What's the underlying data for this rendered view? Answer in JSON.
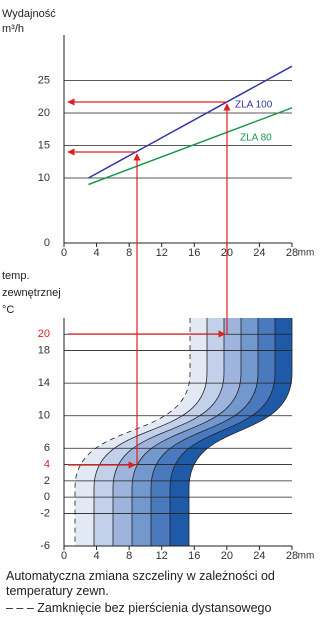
{
  "chart_data": [
    {
      "type": "line",
      "ylabel": [
        "Wydajność",
        "m³/h"
      ],
      "xlabel": "mm",
      "x": [
        3,
        28
      ],
      "xlim": [
        0,
        28
      ],
      "xticks": [
        0,
        4,
        8,
        12,
        16,
        20,
        24,
        28
      ],
      "ylim": [
        0,
        32
      ],
      "yticks": [
        0,
        10,
        15,
        20,
        25
      ],
      "grid": true,
      "series": [
        {
          "name": "ZLA 100",
          "color": "#3434a8",
          "values": [
            10,
            27.2
          ]
        },
        {
          "name": "ZLA 80",
          "color": "#1a9a4a",
          "values": [
            9,
            20.8
          ]
        }
      ]
    },
    {
      "type": "bands",
      "ylabel": [
        "temp.",
        "zewnętrznej",
        "°C"
      ],
      "xlabel": "mm",
      "xlim": [
        0,
        28
      ],
      "xticks": [
        0,
        4,
        8,
        12,
        16,
        20,
        24,
        28
      ],
      "ylim": [
        -6,
        22
      ],
      "yticks": [
        -6,
        -2,
        0,
        2,
        4,
        6,
        10,
        14,
        18,
        20
      ],
      "grid": true,
      "highlight_color": "#e02020",
      "highlight_ticks": [
        4,
        20
      ]
    }
  ],
  "caption": [
    "Automatyczna zmiana szczeliny w zależności od temperatury zewn.",
    "– – – Zamknięcie bez pierścienia dystansowego"
  ]
}
